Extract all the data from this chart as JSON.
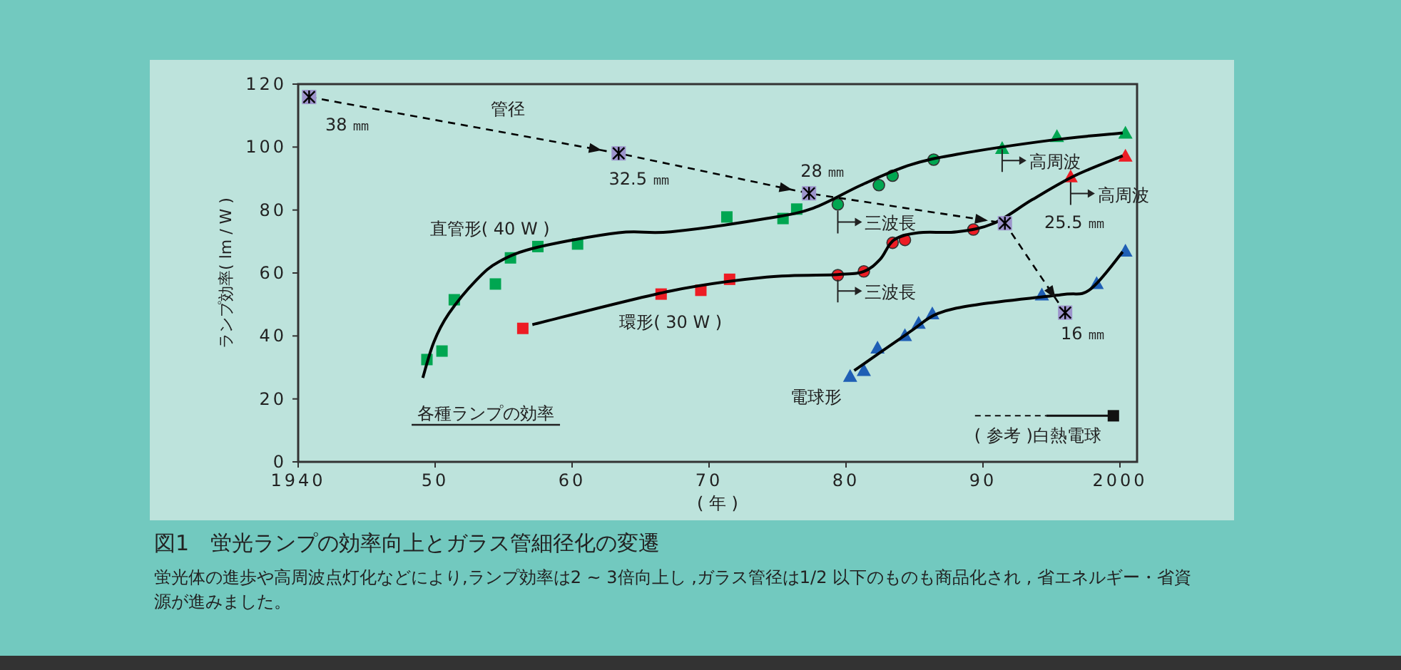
{
  "chart_data": {
    "type": "scatter",
    "title": "図1　蛍光ランプの効率向上とガラス管細径化の変遷",
    "subtitle": "蛍光体の進歩や高周波点灯化などにより,ランプ効率は2 ~ 3倍向上し ,ガラス管径は1/2 以下のものも商品化され , 省エネルギー・省資源が進みました。",
    "xlabel": "( 年 )",
    "ylabel": "ランプ効率( lm / W )",
    "xlim": [
      1940,
      2001.25
    ],
    "ylim": [
      0,
      120
    ],
    "xticks": [
      1940,
      {
        "value": 1950,
        "label": "50"
      },
      {
        "value": 1960,
        "label": "60"
      },
      {
        "value": 1970,
        "label": "70"
      },
      {
        "value": 1980,
        "label": "80"
      },
      {
        "value": 1990,
        "label": "90"
      },
      2000
    ],
    "yticks": [
      0,
      20,
      40,
      60,
      80,
      100,
      120
    ],
    "series": [
      {
        "type": "line",
        "color": "#000000",
        "line_style": "solid",
        "marker": "none",
        "x": [
          1949.1,
          1949.9,
          1951.0,
          1953.0,
          1954.7,
          1957.5,
          1963.4,
          1967.2,
          1974.2,
          1977.6,
          1981.1,
          1984.6,
          1988.1,
          1995.0,
          2000.2
        ],
        "values": [
          26.7,
          38.0,
          47.1,
          57.7,
          63.7,
          68.2,
          72.8,
          73.1,
          77.3,
          80.6,
          87.9,
          94.2,
          97.7,
          102.2,
          104.5
        ]
      },
      {
        "type": "line",
        "color": "#000000",
        "line_style": "solid",
        "marker": "none",
        "x": [
          1957.1,
          1967.2,
          1974.2,
          1979.4,
          1981.3,
          1982.5,
          1983.5,
          1985.3,
          1988.1,
          1990.8,
          1993.6,
          1996.7,
          2000.2
        ],
        "values": [
          43.6,
          54.3,
          58.7,
          59.5,
          60.5,
          64.4,
          70.5,
          72.8,
          73.1,
          75.8,
          83.3,
          90.9,
          97.2
        ]
      },
      {
        "type": "line",
        "color": "#000000",
        "line_style": "solid",
        "marker": "none",
        "x": [
          1980.6,
          1984.6,
          1986.7,
          1989.8,
          1995.7,
          1997.8,
          2000.2
        ],
        "values": [
          29.0,
          41.1,
          47.1,
          50.1,
          53.1,
          54.7,
          66.7
        ]
      },
      {
        "type": "scatter",
        "color": "#00a651",
        "marker": "square",
        "x": [
          1949.4,
          1950.5,
          1951.4,
          1954.4,
          1955.5,
          1957.5,
          1960.4,
          1971.3,
          1975.4,
          1976.4
        ],
        "values": [
          32.5,
          35.2,
          51.5,
          56.5,
          64.8,
          68.4,
          69.2,
          77.8,
          77.3,
          80.3
        ]
      },
      {
        "type": "scatter",
        "color": "#00a651",
        "marker": "circle",
        "x": [
          1979.4,
          1982.4,
          1983.4,
          1986.4
        ],
        "values": [
          81.8,
          87.9,
          90.9,
          96.0
        ]
      },
      {
        "type": "scatter",
        "color": "#00a651",
        "marker": "triangle",
        "x": [
          1991.4,
          1995.4,
          2000.4
        ],
        "values": [
          99.6,
          103.4,
          104.5
        ]
      },
      {
        "type": "scatter",
        "color": "#ed1c24",
        "marker": "square",
        "x": [
          1956.4,
          1966.5,
          1969.4,
          1971.5
        ],
        "values": [
          42.4,
          53.3,
          54.5,
          58.0
        ]
      },
      {
        "type": "scatter",
        "color": "#ed1c24",
        "marker": "circle",
        "x": [
          1979.4,
          1981.3,
          1983.4,
          1984.3,
          1989.3
        ],
        "values": [
          59.3,
          60.5,
          69.6,
          70.5,
          73.8
        ]
      },
      {
        "type": "scatter",
        "color": "#ed1c24",
        "marker": "triangle",
        "x": [
          1996.4,
          2000.4
        ],
        "values": [
          90.6,
          97.2
        ]
      },
      {
        "type": "scatter",
        "color": "#1f5fb5",
        "marker": "triangle",
        "x": [
          1980.3,
          1981.3,
          1982.3,
          1984.3,
          1985.3,
          1986.3,
          1994.3,
          1998.3,
          2000.4
        ],
        "values": [
          27.2,
          29.1,
          36.2,
          40.2,
          44.1,
          47.1,
          53.1,
          56.7,
          67.0
        ]
      },
      {
        "type": "line",
        "color": "#000000",
        "line_style": "dashed",
        "marker": "cross",
        "x": [
          1940.8,
          1963.4,
          1977.3,
          1991.6,
          1996.0
        ],
        "values": [
          115.9,
          98.0,
          85.3,
          75.8,
          47.4
        ]
      }
    ],
    "annotations": [
      "管径",
      "38 ㎜",
      "32.5 ㎜",
      "28 ㎜",
      "25.5 ㎜",
      "16 ㎜",
      "直管形( 40 W )",
      "環形( 30 W )",
      "電球形",
      "各種ランプの効率",
      "三波長",
      "三波長",
      {
        "text": "高周波",
        "x": 1991.4,
        "y": 95.7
      },
      {
        "text": "高周波",
        "x": 1996.4,
        "y": 86.6
      },
      "( 参考 )白熱電球"
    ]
  }
}
